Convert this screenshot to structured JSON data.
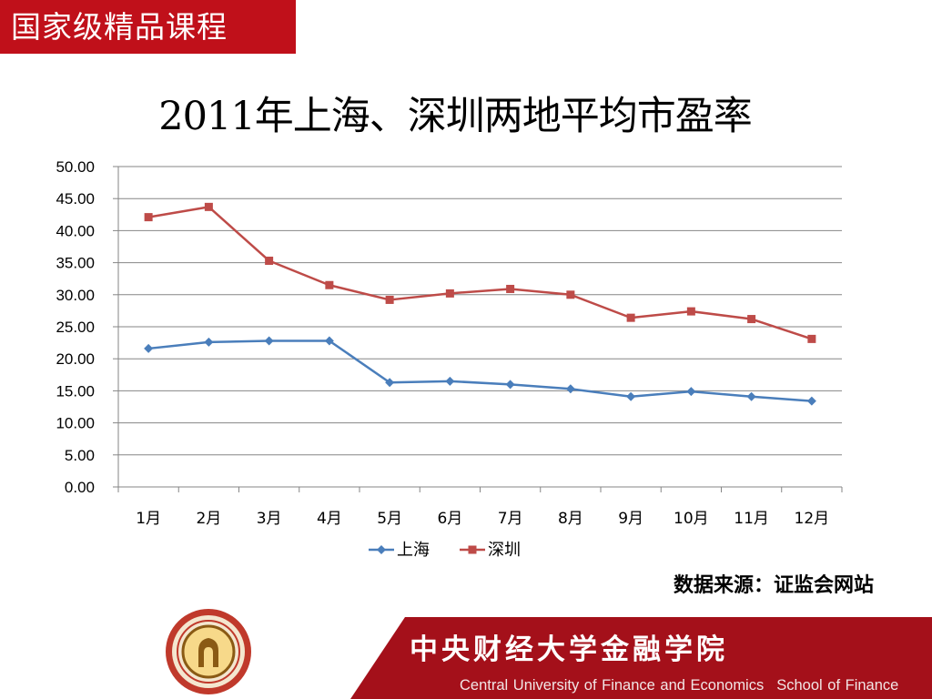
{
  "badge": "国家级精品课程",
  "source_note": "数据来源：证监会网站",
  "footer": {
    "school_cn": "中央财经大学金融学院",
    "university_en": "Central University of Finance and Economics",
    "school_en": "School of Finance",
    "brand_color": "#a4101a"
  },
  "chart_data": {
    "type": "line",
    "title": "2011年上海、深圳两地平均市盈率",
    "categories": [
      "1月",
      "2月",
      "3月",
      "4月",
      "5月",
      "6月",
      "7月",
      "8月",
      "9月",
      "10月",
      "11月",
      "12月"
    ],
    "series": [
      {
        "name": "上海",
        "color": "#4a7ebb",
        "marker": "diamond",
        "values": [
          21.6,
          22.6,
          22.8,
          22.8,
          16.3,
          16.5,
          16.0,
          15.3,
          14.1,
          14.9,
          14.1,
          13.4
        ]
      },
      {
        "name": "深圳",
        "color": "#be4b48",
        "marker": "square",
        "values": [
          42.1,
          43.7,
          35.3,
          31.5,
          29.2,
          30.2,
          30.9,
          30.0,
          26.4,
          27.4,
          26.2,
          23.1
        ]
      }
    ],
    "ylim": [
      0,
      50
    ],
    "yticks": [
      "0.00",
      "5.00",
      "10.00",
      "15.00",
      "20.00",
      "25.00",
      "30.00",
      "35.00",
      "40.00",
      "45.00",
      "50.00"
    ],
    "grid": true,
    "legend": "bottom"
  }
}
